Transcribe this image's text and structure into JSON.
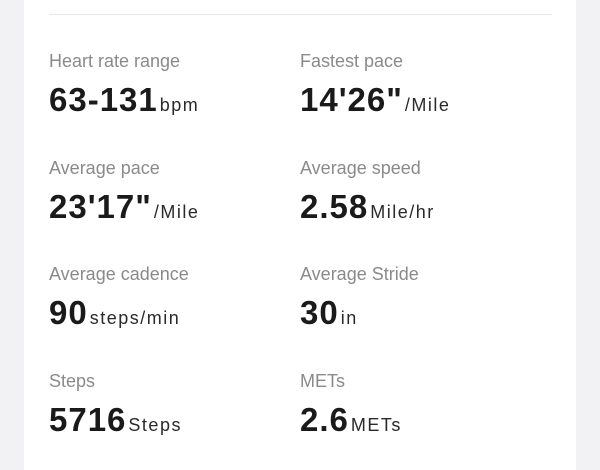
{
  "stats": [
    {
      "label": "Heart rate range",
      "value": "63-131",
      "unit": "bpm"
    },
    {
      "label": "Fastest pace",
      "value": "14'26\"",
      "unit": "/Mile"
    },
    {
      "label": "Average pace",
      "value": "23'17\"",
      "unit": "/Mile"
    },
    {
      "label": "Average speed",
      "value": "2.58",
      "unit": "Mile/hr"
    },
    {
      "label": "Average cadence",
      "value": "90",
      "unit": "steps/min"
    },
    {
      "label": "Average Stride",
      "value": "30",
      "unit": "in"
    },
    {
      "label": "Steps",
      "value": "5716",
      "unit": "Steps"
    },
    {
      "label": "METs",
      "value": "2.6",
      "unit": "METs"
    }
  ]
}
